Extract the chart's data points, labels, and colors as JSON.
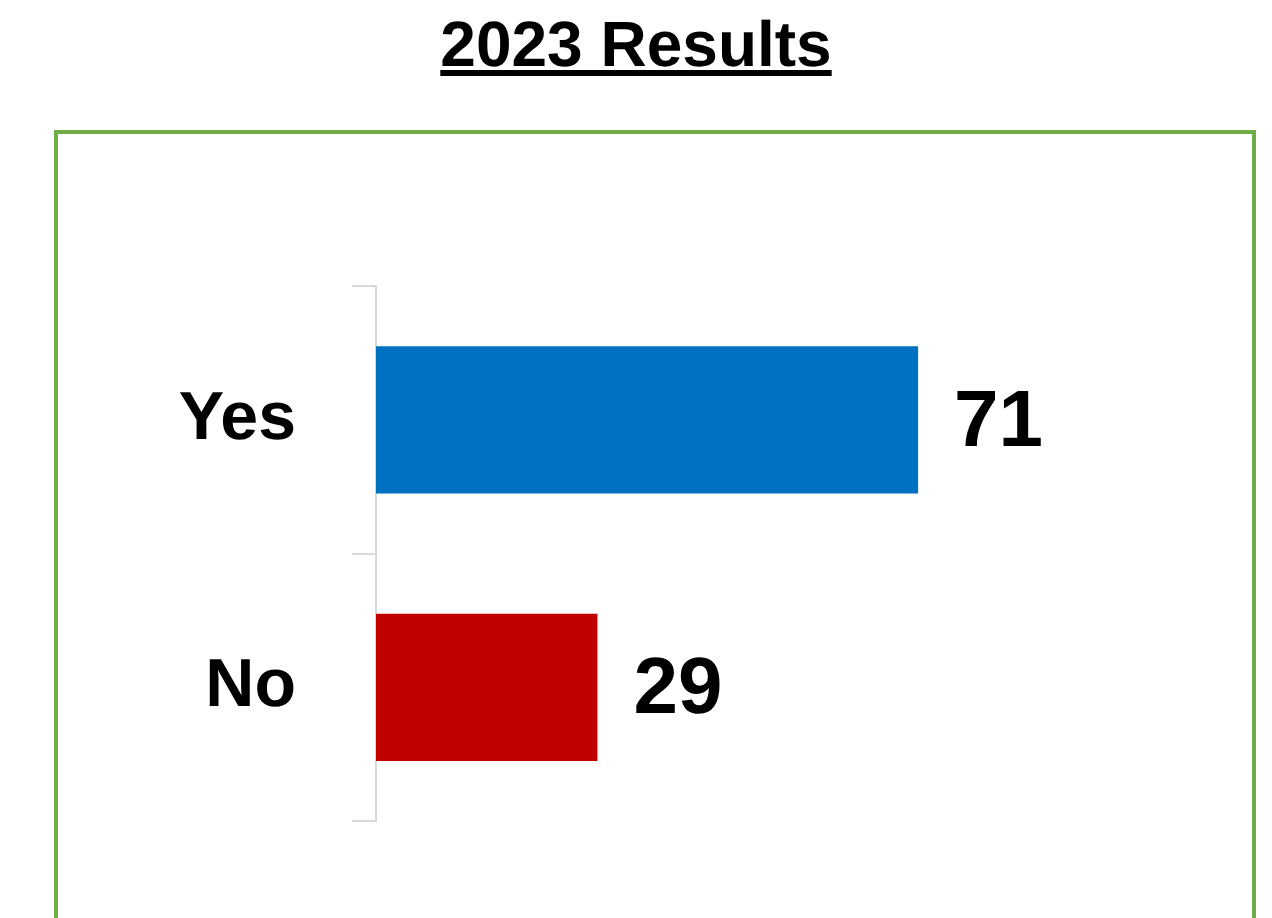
{
  "chart_data": {
    "type": "bar",
    "orientation": "horizontal",
    "title": "2023 Results",
    "categories": [
      "Yes",
      "No"
    ],
    "values": [
      71,
      29
    ],
    "colors": [
      "#0070c0",
      "#c00000"
    ],
    "data_labels": true,
    "grid": false,
    "legend": false
  }
}
